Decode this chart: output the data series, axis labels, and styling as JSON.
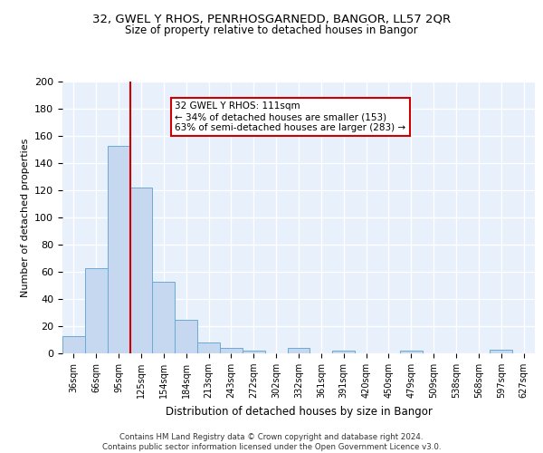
{
  "title1": "32, GWEL Y RHOS, PENRHOSGARNEDD, BANGOR, LL57 2QR",
  "title2": "Size of property relative to detached houses in Bangor",
  "xlabel": "Distribution of detached houses by size in Bangor",
  "ylabel": "Number of detached properties",
  "bar_labels": [
    "36sqm",
    "66sqm",
    "95sqm",
    "125sqm",
    "154sqm",
    "184sqm",
    "213sqm",
    "243sqm",
    "272sqm",
    "302sqm",
    "332sqm",
    "361sqm",
    "391sqm",
    "420sqm",
    "450sqm",
    "479sqm",
    "509sqm",
    "538sqm",
    "568sqm",
    "597sqm",
    "627sqm"
  ],
  "bar_values": [
    13,
    63,
    153,
    122,
    53,
    25,
    8,
    4,
    2,
    0,
    4,
    0,
    2,
    0,
    0,
    2,
    0,
    0,
    0,
    3,
    0
  ],
  "bar_color": "#c5d8f0",
  "bar_edge_color": "#6aaad4",
  "background_color": "#e8f0fc",
  "grid_color": "#ffffff",
  "vline_color": "#cc0000",
  "annotation_text": "32 GWEL Y RHOS: 111sqm\n← 34% of detached houses are smaller (153)\n63% of semi-detached houses are larger (283) →",
  "annotation_box_color": "#ffffff",
  "annotation_box_edge_color": "#cc0000",
  "ylim": [
    0,
    200
  ],
  "yticks": [
    0,
    20,
    40,
    60,
    80,
    100,
    120,
    140,
    160,
    180,
    200
  ],
  "footer": "Contains HM Land Registry data © Crown copyright and database right 2024.\nContains public sector information licensed under the Open Government Licence v3.0."
}
